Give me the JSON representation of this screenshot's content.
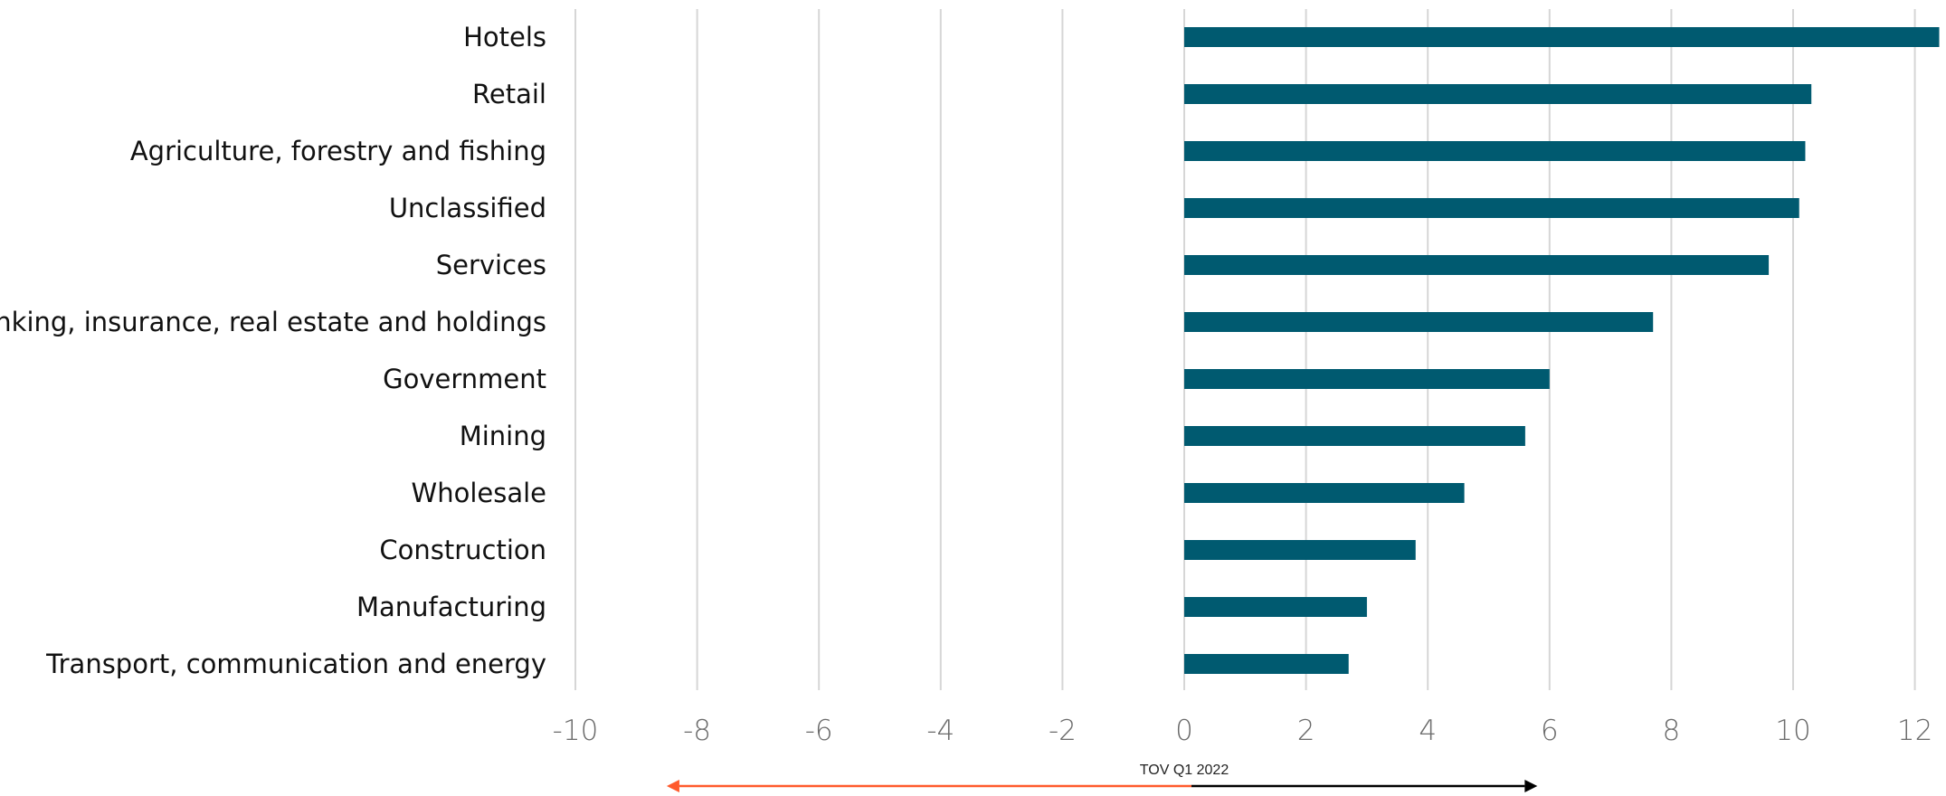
{
  "chart_data": {
    "type": "bar",
    "orientation": "horizontal",
    "categories": [
      "Hotels",
      "Retail",
      "Agriculture, forestry and fishing",
      "Unclassified",
      "Services",
      "Banking, insurance, real estate and holdings",
      "Government",
      "Mining",
      "Wholesale",
      "Construction",
      "Manufacturing",
      "Transport, communication and energy"
    ],
    "values": [
      12.4,
      10.3,
      10.2,
      10.1,
      9.6,
      7.7,
      6.0,
      5.6,
      4.6,
      3.8,
      3.0,
      2.7
    ],
    "xlim": [
      -10,
      12.5
    ],
    "xticks": [
      -10,
      -8,
      -6,
      -4,
      -2,
      0,
      2,
      4,
      6,
      8,
      10,
      12
    ],
    "xtick_labels": [
      "-10",
      "-8",
      "-6",
      "-4",
      "-2",
      "0",
      "2",
      "4",
      "6",
      "8",
      "10",
      "12"
    ],
    "grid": true,
    "annotation": {
      "label": "TOV Q1 2022",
      "arrow_left_to": -8.5,
      "arrow_right_to": 5.8,
      "arrow_split": 0
    }
  },
  "colors": {
    "bar": "#005a70",
    "arrow_left": "#ff5a2c",
    "arrow_right": "#000000"
  }
}
